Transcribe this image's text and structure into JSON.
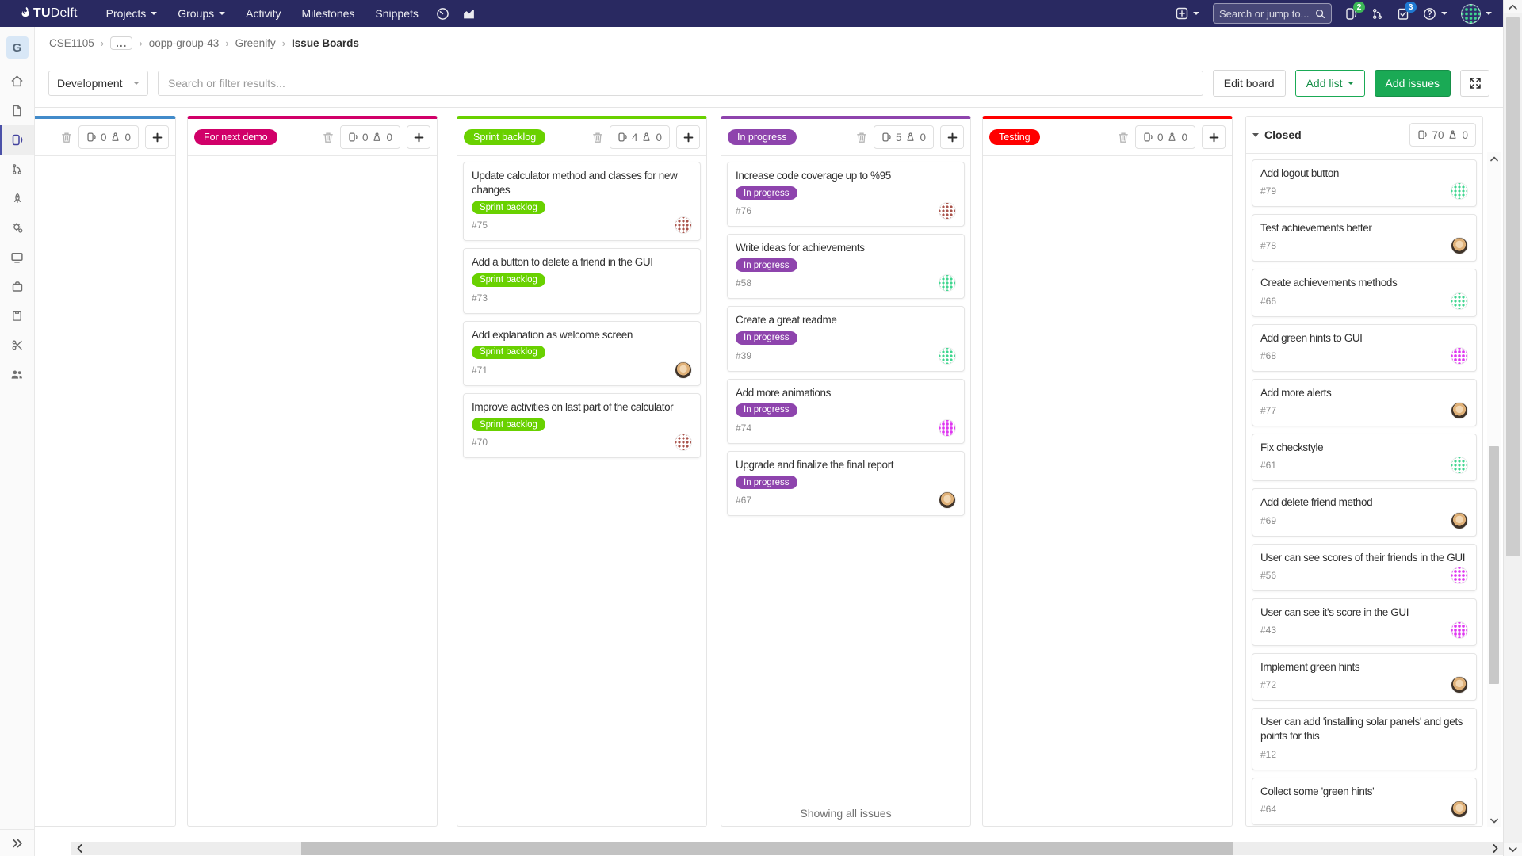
{
  "navbar": {
    "logo_tu": "TU",
    "logo_rest": "Delft",
    "menu": [
      {
        "label": "Projects",
        "caret": true
      },
      {
        "label": "Groups",
        "caret": true
      },
      {
        "label": "Activity",
        "caret": false
      },
      {
        "label": "Milestones",
        "caret": false
      },
      {
        "label": "Snippets",
        "caret": false
      }
    ],
    "search_placeholder": "Search or jump to...",
    "issues_badge": "2",
    "todos_badge": "3"
  },
  "sidebar": {
    "project_initial": "G",
    "items": [
      "project-overview",
      "repository",
      "issue-boards",
      "merge-requests",
      "ci-cd",
      "operations",
      "monitor",
      "packages",
      "wiki",
      "snippets",
      "members"
    ]
  },
  "breadcrumb": {
    "separator": "›",
    "items": [
      {
        "label": "CSE1105",
        "type": "link"
      },
      {
        "label": "...",
        "type": "ellipsis"
      },
      {
        "label": "oopp-group-43",
        "type": "link"
      },
      {
        "label": "Greenify",
        "type": "link"
      },
      {
        "label": "Issue Boards",
        "type": "current"
      }
    ]
  },
  "filter_bar": {
    "board_select": "Development",
    "search_placeholder": "Search or filter results...",
    "edit_board": "Edit board",
    "add_list": "Add list",
    "add_issues": "Add issues"
  },
  "theme": {
    "navbar_bg": "#292961",
    "green_button": "#1aaa55",
    "active_sidebar": "#4b51a8"
  },
  "board": {
    "lists": [
      {
        "name": "",
        "color": "#428bca",
        "issue_count": "0",
        "weight": "0",
        "show_trash": true,
        "show_add": true,
        "cards": []
      },
      {
        "name": "For next demo",
        "color": "#d10069",
        "issue_count": "0",
        "weight": "0",
        "show_trash": true,
        "show_add": true,
        "cards": []
      },
      {
        "name": "Sprint backlog",
        "color": "#69d100",
        "issue_count": "4",
        "weight": "0",
        "show_trash": true,
        "show_add": true,
        "cards": [
          {
            "title": "Update calculator method and classes for new changes",
            "label": "Sprint backlog",
            "label_color": "#69d100",
            "ref": "#75",
            "avatar": "identicon-red"
          },
          {
            "title": "Add a button to delete a friend in the GUI",
            "label": "Sprint backlog",
            "label_color": "#69d100",
            "ref": "#73",
            "avatar": null
          },
          {
            "title": "Add explanation as welcome screen",
            "label": "Sprint backlog",
            "label_color": "#69d100",
            "ref": "#71",
            "avatar": "photo"
          },
          {
            "title": "Improve activities on last part of the calculator",
            "label": "Sprint backlog",
            "label_color": "#69d100",
            "ref": "#70",
            "avatar": "identicon-red"
          }
        ]
      },
      {
        "name": "In progress",
        "color": "#8e44ad",
        "issue_count": "5",
        "weight": "0",
        "show_trash": true,
        "show_add": true,
        "footer": "Showing all issues",
        "cards": [
          {
            "title": "Increase code coverage up to %95",
            "label": "In progress",
            "label_color": "#8e44ad",
            "ref": "#76",
            "avatar": "identicon-red"
          },
          {
            "title": "Write ideas for achievements",
            "label": "In progress",
            "label_color": "#8e44ad",
            "ref": "#58",
            "avatar": "identicon-green"
          },
          {
            "title": "Create a great readme",
            "label": "In progress",
            "label_color": "#8e44ad",
            "ref": "#39",
            "avatar": "identicon-green"
          },
          {
            "title": "Add more animations",
            "label": "In progress",
            "label_color": "#8e44ad",
            "ref": "#74",
            "avatar": "identicon-magenta"
          },
          {
            "title": "Upgrade and finalize the final report",
            "label": "In progress",
            "label_color": "#8e44ad",
            "ref": "#67",
            "avatar": "photo"
          }
        ]
      },
      {
        "name": "Testing",
        "color": "#ff0000",
        "issue_count": "0",
        "weight": "0",
        "show_trash": true,
        "show_add": true,
        "cards": []
      },
      {
        "name": "Closed",
        "color": null,
        "name_style": "plain",
        "issue_count": "70",
        "weight": "0",
        "show_trash": false,
        "show_add": false,
        "stub_card": true,
        "cards": [
          {
            "title": "Add logout button",
            "ref": "#79",
            "avatar": "identicon-green"
          },
          {
            "title": "Test achievements better",
            "ref": "#78",
            "avatar": "photo"
          },
          {
            "title": "Create achievements methods",
            "ref": "#66",
            "avatar": "identicon-green"
          },
          {
            "title": "Add green hints to GUI",
            "ref": "#68",
            "avatar": "identicon-magenta"
          },
          {
            "title": "Add more alerts",
            "ref": "#77",
            "avatar": "photo"
          },
          {
            "title": "Fix checkstyle",
            "ref": "#61",
            "avatar": "identicon-green"
          },
          {
            "title": "Add delete friend method",
            "ref": "#69",
            "avatar": "photo"
          },
          {
            "title": "User can see scores of their friends in the GUI",
            "ref": "#56",
            "avatar": "identicon-magenta"
          },
          {
            "title": "User can see it's score in the GUI",
            "ref": "#43",
            "avatar": "identicon-magenta"
          },
          {
            "title": "Implement green hints",
            "ref": "#72",
            "avatar": "photo"
          },
          {
            "title": "User can add 'installing solar panels' and gets points for this",
            "ref": "#12",
            "avatar": null
          },
          {
            "title": "Collect some 'green hints'",
            "ref": "#64",
            "avatar": "photo"
          }
        ]
      }
    ]
  }
}
